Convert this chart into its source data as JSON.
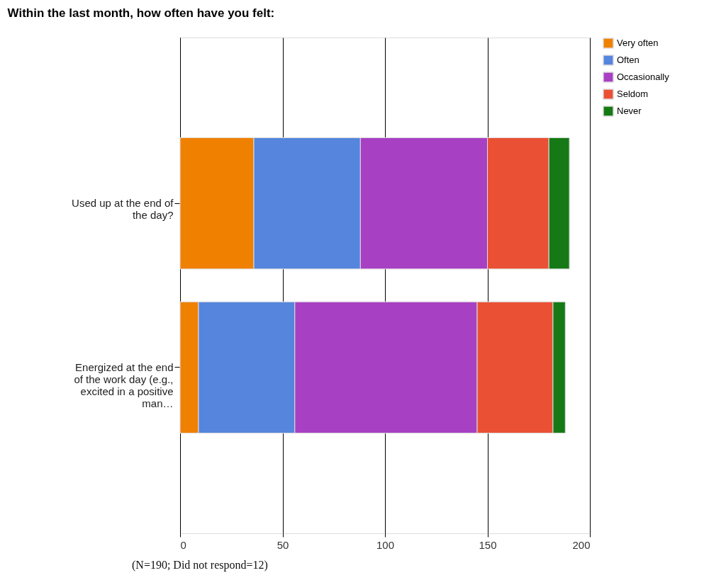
{
  "chart_data": {
    "type": "bar",
    "orientation": "horizontal",
    "stacked": true,
    "title": "Within the last month, how often have you felt:",
    "categories": [
      "Used up at the end of the day?",
      "Energized at the end of the work day (e.g., excited in a positive man…"
    ],
    "series": [
      {
        "name": "Very often",
        "color": "#f08000",
        "values": [
          36,
          9
        ]
      },
      {
        "name": "Often",
        "color": "#5585dc",
        "values": [
          52,
          47
        ]
      },
      {
        "name": "Occasionally",
        "color": "#a840c4",
        "values": [
          62,
          89
        ]
      },
      {
        "name": "Seldom",
        "color": "#ea5034",
        "values": [
          30,
          37
        ]
      },
      {
        "name": "Never",
        "color": "#157a15",
        "values": [
          10,
          6
        ]
      }
    ],
    "xlim": [
      0,
      200
    ],
    "xticks": [
      0,
      50,
      100,
      150,
      200
    ],
    "grid": "x",
    "legend": "right",
    "annotations": [
      "(N=190; Did not respond=12)"
    ]
  }
}
